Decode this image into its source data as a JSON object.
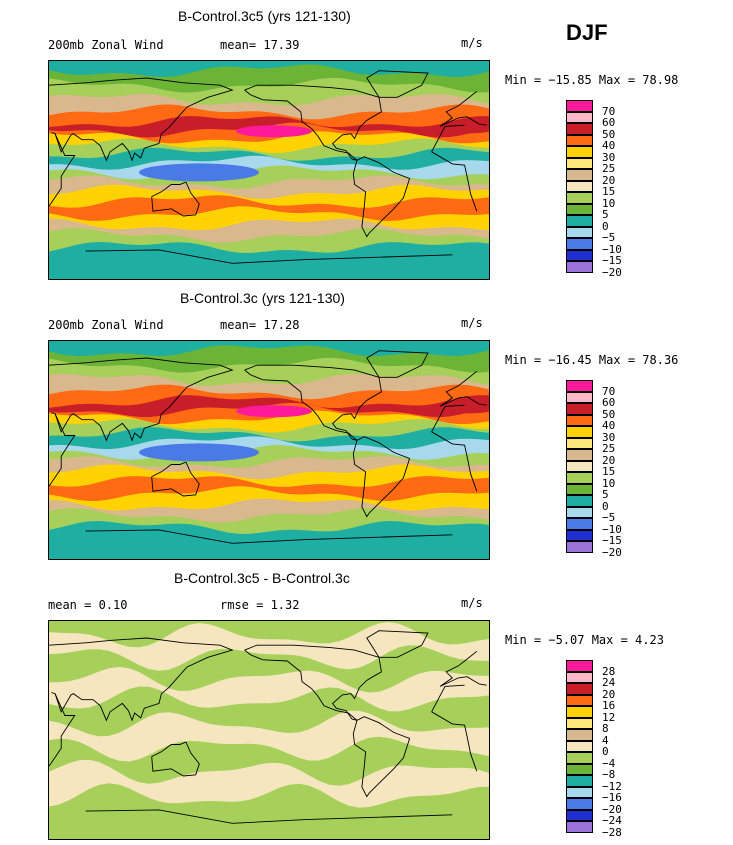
{
  "season": "DJF",
  "panels": [
    {
      "title": "B-Control.3c5 (yrs 121-130)",
      "left": "200mb Zonal Wind",
      "middle": "mean=  17.39",
      "units": "m/s",
      "minmax": "Min = −15.85 Max =  78.98"
    },
    {
      "title": "B-Control.3c (yrs 121-130)",
      "left": "200mb Zonal Wind",
      "middle": "mean=  17.28",
      "units": "m/s",
      "minmax": "Min = −16.45 Max =  78.36"
    },
    {
      "title": "B-Control.3c5 - B-Control.3c",
      "left": "mean =   0.10",
      "middle": "rmse =   1.32",
      "units": "m/s",
      "minmax": "Min =  −5.07 Max =    4.23"
    }
  ],
  "colorbar_main": {
    "labels": [
      "70",
      "60",
      "50",
      "40",
      "30",
      "25",
      "20",
      "15",
      "10",
      "5",
      "0",
      "−5",
      "−10",
      "−15",
      "−20"
    ],
    "colors": [
      "#ff1a9c",
      "#ffb8c8",
      "#c81e2a",
      "#ff6a12",
      "#ffd200",
      "#ffe87a",
      "#d9b88e",
      "#f5e6c0",
      "#a6d05a",
      "#6cb436",
      "#1eaea2",
      "#a8d8ec",
      "#4a7ae6",
      "#2030d0",
      "#9a72d8"
    ]
  },
  "colorbar_diff": {
    "labels": [
      "28",
      "24",
      "20",
      "16",
      "12",
      "8",
      "4",
      "0",
      "−4",
      "−8",
      "−12",
      "−16",
      "−20",
      "−24",
      "−28"
    ],
    "colors": [
      "#ff1a9c",
      "#ffb8c8",
      "#c81e2a",
      "#ff6a12",
      "#ffd200",
      "#ffe87a",
      "#d9b88e",
      "#f5e6c0",
      "#a6d05a",
      "#6cb436",
      "#1eaea2",
      "#a8d8ec",
      "#4a7ae6",
      "#2030d0",
      "#9a72d8"
    ]
  },
  "map_fields": {
    "wind": [
      {
        "lat": 82,
        "color": "#1eaea2"
      },
      {
        "lat": 70,
        "color": "#6cb436"
      },
      {
        "lat": 58,
        "color": "#a6d05a"
      },
      {
        "lat": 48,
        "color": "#d9b88e"
      },
      {
        "lat": 40,
        "color": "#ff6a12"
      },
      {
        "lat": 33,
        "color": "#c81e2a"
      },
      {
        "lat": 27,
        "color": "#ff6a12"
      },
      {
        "lat": 20,
        "color": "#ffd200"
      },
      {
        "lat": 13,
        "color": "#a6d05a"
      },
      {
        "lat": 6,
        "color": "#1eaea2"
      },
      {
        "lat": -2,
        "color": "#a8d8ec"
      },
      {
        "lat": -10,
        "color": "#a6d05a"
      },
      {
        "lat": -18,
        "color": "#d9b88e"
      },
      {
        "lat": -26,
        "color": "#ffd200"
      },
      {
        "lat": -36,
        "color": "#ff6a12"
      },
      {
        "lat": -45,
        "color": "#ffd200"
      },
      {
        "lat": -54,
        "color": "#d9b88e"
      },
      {
        "lat": -64,
        "color": "#a6d05a"
      },
      {
        "lat": -74,
        "color": "#1eaea2"
      },
      {
        "lat": -90,
        "color": "#1eaea2"
      }
    ],
    "diff": [
      {
        "lat": 78,
        "color": "#a6d05a"
      },
      {
        "lat": 60,
        "color": "#f5e6c0"
      },
      {
        "lat": 42,
        "color": "#a6d05a"
      },
      {
        "lat": 25,
        "color": "#f5e6c0"
      },
      {
        "lat": 5,
        "color": "#a6d05a"
      },
      {
        "lat": -15,
        "color": "#f5e6c0"
      },
      {
        "lat": -35,
        "color": "#a6d05a"
      },
      {
        "lat": -55,
        "color": "#f5e6c0"
      },
      {
        "lat": -90,
        "color": "#a6d05a"
      }
    ]
  }
}
